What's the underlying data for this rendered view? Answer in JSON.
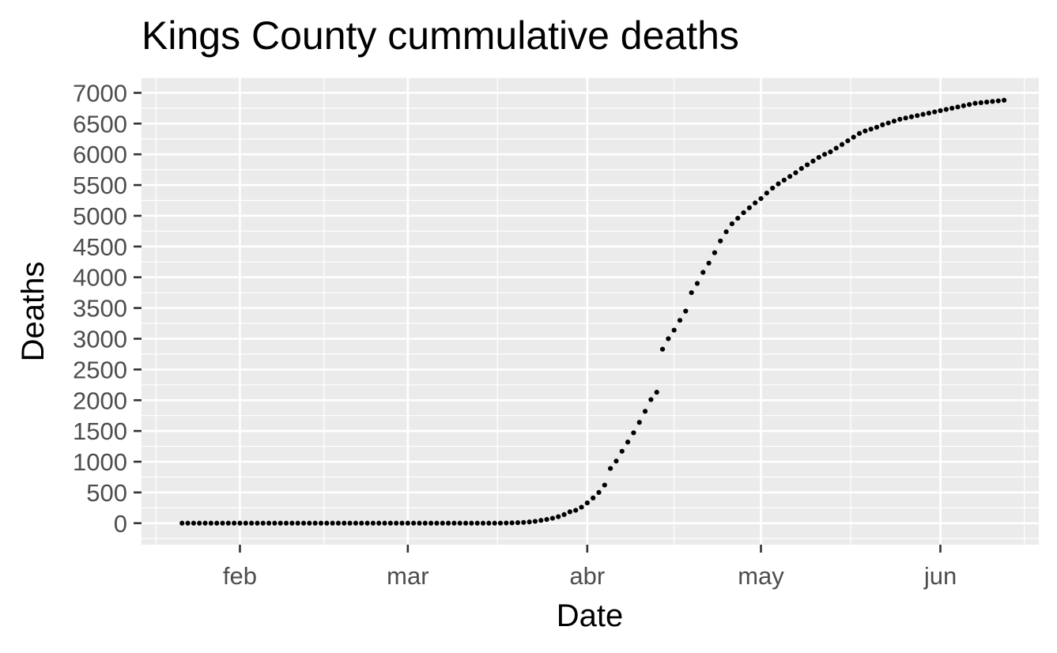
{
  "chart_data": {
    "type": "scatter",
    "title": "Kings County cummulative deaths",
    "xlabel": "Date",
    "ylabel": "Deaths",
    "x_ticks": [
      {
        "label": "feb",
        "date": "2020-02-01"
      },
      {
        "label": "mar",
        "date": "2020-03-01"
      },
      {
        "label": "abr",
        "date": "2020-04-01"
      },
      {
        "label": "may",
        "date": "2020-05-01"
      },
      {
        "label": "jun",
        "date": "2020-06-01"
      }
    ],
    "y_ticks": [
      0,
      500,
      1000,
      1500,
      2000,
      2500,
      3000,
      3500,
      4000,
      4500,
      5000,
      5500,
      6000,
      6500,
      7000
    ],
    "ylim": [
      -350,
      7250
    ],
    "xlim": [
      "2020-01-15",
      "2020-06-18"
    ],
    "grid": true,
    "point_color": "#000000",
    "panel_background": "#ebebeb",
    "grid_color": "#ffffff",
    "series": [
      {
        "points": [
          {
            "x": "2020-01-22",
            "y": 0
          },
          {
            "x": "2020-01-23",
            "y": 0
          },
          {
            "x": "2020-01-24",
            "y": 0
          },
          {
            "x": "2020-01-25",
            "y": 0
          },
          {
            "x": "2020-01-26",
            "y": 0
          },
          {
            "x": "2020-01-27",
            "y": 0
          },
          {
            "x": "2020-01-28",
            "y": 0
          },
          {
            "x": "2020-01-29",
            "y": 0
          },
          {
            "x": "2020-01-30",
            "y": 0
          },
          {
            "x": "2020-01-31",
            "y": 0
          },
          {
            "x": "2020-02-01",
            "y": 0
          },
          {
            "x": "2020-02-02",
            "y": 0
          },
          {
            "x": "2020-02-03",
            "y": 0
          },
          {
            "x": "2020-02-04",
            "y": 0
          },
          {
            "x": "2020-02-05",
            "y": 0
          },
          {
            "x": "2020-02-06",
            "y": 0
          },
          {
            "x": "2020-02-07",
            "y": 0
          },
          {
            "x": "2020-02-08",
            "y": 0
          },
          {
            "x": "2020-02-09",
            "y": 0
          },
          {
            "x": "2020-02-10",
            "y": 0
          },
          {
            "x": "2020-02-11",
            "y": 0
          },
          {
            "x": "2020-02-12",
            "y": 0
          },
          {
            "x": "2020-02-13",
            "y": 0
          },
          {
            "x": "2020-02-14",
            "y": 0
          },
          {
            "x": "2020-02-15",
            "y": 0
          },
          {
            "x": "2020-02-16",
            "y": 0
          },
          {
            "x": "2020-02-17",
            "y": 0
          },
          {
            "x": "2020-02-18",
            "y": 0
          },
          {
            "x": "2020-02-19",
            "y": 0
          },
          {
            "x": "2020-02-20",
            "y": 0
          },
          {
            "x": "2020-02-21",
            "y": 0
          },
          {
            "x": "2020-02-22",
            "y": 0
          },
          {
            "x": "2020-02-23",
            "y": 0
          },
          {
            "x": "2020-02-24",
            "y": 0
          },
          {
            "x": "2020-02-25",
            "y": 0
          },
          {
            "x": "2020-02-26",
            "y": 0
          },
          {
            "x": "2020-02-27",
            "y": 0
          },
          {
            "x": "2020-02-28",
            "y": 0
          },
          {
            "x": "2020-02-29",
            "y": 0
          },
          {
            "x": "2020-03-01",
            "y": 0
          },
          {
            "x": "2020-03-02",
            "y": 0
          },
          {
            "x": "2020-03-03",
            "y": 0
          },
          {
            "x": "2020-03-04",
            "y": 0
          },
          {
            "x": "2020-03-05",
            "y": 0
          },
          {
            "x": "2020-03-06",
            "y": 0
          },
          {
            "x": "2020-03-07",
            "y": 0
          },
          {
            "x": "2020-03-08",
            "y": 0
          },
          {
            "x": "2020-03-09",
            "y": 0
          },
          {
            "x": "2020-03-10",
            "y": 0
          },
          {
            "x": "2020-03-11",
            "y": 0
          },
          {
            "x": "2020-03-12",
            "y": 0
          },
          {
            "x": "2020-03-13",
            "y": 0
          },
          {
            "x": "2020-03-14",
            "y": 0
          },
          {
            "x": "2020-03-15",
            "y": 0
          },
          {
            "x": "2020-03-16",
            "y": 0
          },
          {
            "x": "2020-03-17",
            "y": 1
          },
          {
            "x": "2020-03-18",
            "y": 3
          },
          {
            "x": "2020-03-19",
            "y": 5
          },
          {
            "x": "2020-03-20",
            "y": 8
          },
          {
            "x": "2020-03-21",
            "y": 12
          },
          {
            "x": "2020-03-22",
            "y": 20
          },
          {
            "x": "2020-03-23",
            "y": 30
          },
          {
            "x": "2020-03-24",
            "y": 45
          },
          {
            "x": "2020-03-25",
            "y": 60
          },
          {
            "x": "2020-03-26",
            "y": 80
          },
          {
            "x": "2020-03-27",
            "y": 105
          },
          {
            "x": "2020-03-28",
            "y": 140
          },
          {
            "x": "2020-03-29",
            "y": 185
          },
          {
            "x": "2020-03-30",
            "y": 210
          },
          {
            "x": "2020-03-31",
            "y": 260
          },
          {
            "x": "2020-04-01",
            "y": 330
          },
          {
            "x": "2020-04-02",
            "y": 410
          },
          {
            "x": "2020-04-03",
            "y": 500
          },
          {
            "x": "2020-04-04",
            "y": 620
          },
          {
            "x": "2020-04-05",
            "y": 890
          },
          {
            "x": "2020-04-06",
            "y": 1010
          },
          {
            "x": "2020-04-07",
            "y": 1170
          },
          {
            "x": "2020-04-08",
            "y": 1320
          },
          {
            "x": "2020-04-09",
            "y": 1470
          },
          {
            "x": "2020-04-10",
            "y": 1640
          },
          {
            "x": "2020-04-11",
            "y": 1820
          },
          {
            "x": "2020-04-12",
            "y": 2010
          },
          {
            "x": "2020-04-13",
            "y": 2130
          },
          {
            "x": "2020-04-14",
            "y": 2830
          },
          {
            "x": "2020-04-15",
            "y": 3000
          },
          {
            "x": "2020-04-16",
            "y": 3140
          },
          {
            "x": "2020-04-17",
            "y": 3300
          },
          {
            "x": "2020-04-18",
            "y": 3450
          },
          {
            "x": "2020-04-19",
            "y": 3750
          },
          {
            "x": "2020-04-20",
            "y": 3900
          },
          {
            "x": "2020-04-21",
            "y": 4080
          },
          {
            "x": "2020-04-22",
            "y": 4230
          },
          {
            "x": "2020-04-23",
            "y": 4400
          },
          {
            "x": "2020-04-24",
            "y": 4590
          },
          {
            "x": "2020-04-25",
            "y": 4740
          },
          {
            "x": "2020-04-26",
            "y": 4870
          },
          {
            "x": "2020-04-27",
            "y": 4960
          },
          {
            "x": "2020-04-28",
            "y": 5050
          },
          {
            "x": "2020-04-29",
            "y": 5130
          },
          {
            "x": "2020-04-30",
            "y": 5210
          },
          {
            "x": "2020-05-01",
            "y": 5280
          },
          {
            "x": "2020-05-02",
            "y": 5370
          },
          {
            "x": "2020-05-03",
            "y": 5450
          },
          {
            "x": "2020-05-04",
            "y": 5520
          },
          {
            "x": "2020-05-05",
            "y": 5580
          },
          {
            "x": "2020-05-06",
            "y": 5640
          },
          {
            "x": "2020-05-07",
            "y": 5700
          },
          {
            "x": "2020-05-08",
            "y": 5770
          },
          {
            "x": "2020-05-09",
            "y": 5830
          },
          {
            "x": "2020-05-10",
            "y": 5890
          },
          {
            "x": "2020-05-11",
            "y": 5950
          },
          {
            "x": "2020-05-12",
            "y": 6000
          },
          {
            "x": "2020-05-13",
            "y": 6040
          },
          {
            "x": "2020-05-14",
            "y": 6100
          },
          {
            "x": "2020-05-15",
            "y": 6160
          },
          {
            "x": "2020-05-16",
            "y": 6220
          },
          {
            "x": "2020-05-17",
            "y": 6280
          },
          {
            "x": "2020-05-18",
            "y": 6340
          },
          {
            "x": "2020-05-19",
            "y": 6380
          },
          {
            "x": "2020-05-20",
            "y": 6410
          },
          {
            "x": "2020-05-21",
            "y": 6440
          },
          {
            "x": "2020-05-22",
            "y": 6480
          },
          {
            "x": "2020-05-23",
            "y": 6510
          },
          {
            "x": "2020-05-24",
            "y": 6540
          },
          {
            "x": "2020-05-25",
            "y": 6570
          },
          {
            "x": "2020-05-26",
            "y": 6590
          },
          {
            "x": "2020-05-27",
            "y": 6610
          },
          {
            "x": "2020-05-28",
            "y": 6630
          },
          {
            "x": "2020-05-29",
            "y": 6650
          },
          {
            "x": "2020-05-30",
            "y": 6670
          },
          {
            "x": "2020-05-31",
            "y": 6690
          },
          {
            "x": "2020-06-01",
            "y": 6710
          },
          {
            "x": "2020-06-02",
            "y": 6730
          },
          {
            "x": "2020-06-03",
            "y": 6750
          },
          {
            "x": "2020-06-04",
            "y": 6770
          },
          {
            "x": "2020-06-05",
            "y": 6790
          },
          {
            "x": "2020-06-06",
            "y": 6810
          },
          {
            "x": "2020-06-07",
            "y": 6830
          },
          {
            "x": "2020-06-08",
            "y": 6840
          },
          {
            "x": "2020-06-09",
            "y": 6850
          },
          {
            "x": "2020-06-10",
            "y": 6860
          },
          {
            "x": "2020-06-11",
            "y": 6870
          },
          {
            "x": "2020-06-12",
            "y": 6880
          }
        ]
      }
    ]
  }
}
